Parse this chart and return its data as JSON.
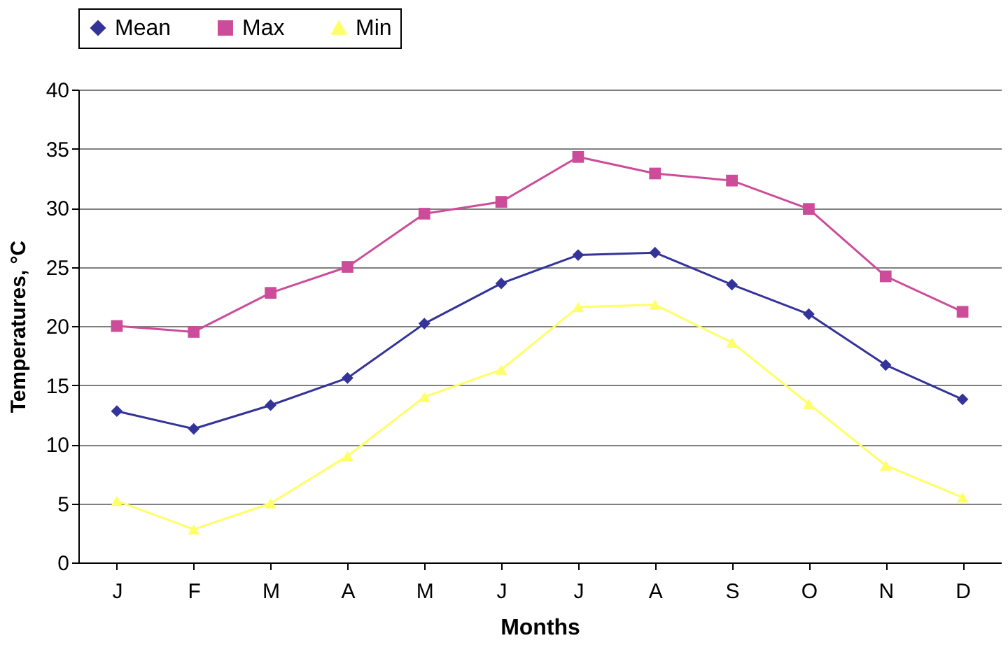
{
  "chart_data": {
    "type": "line",
    "xlabel": "Months",
    "ylabel": "Temperatures, °C",
    "categories": [
      "J",
      "F",
      "M",
      "A",
      "M",
      "J",
      "J",
      "A",
      "S",
      "O",
      "N",
      "D"
    ],
    "series": [
      {
        "name": "Mean",
        "color": "#333399",
        "marker": "diamond",
        "values": [
          12.8,
          11.3,
          13.3,
          15.6,
          20.2,
          23.6,
          26.0,
          26.2,
          23.5,
          21.0,
          16.7,
          13.8
        ]
      },
      {
        "name": "Max",
        "color": "#cc4c99",
        "marker": "square",
        "values": [
          20.0,
          19.5,
          22.8,
          25.0,
          29.5,
          30.5,
          34.3,
          32.9,
          32.3,
          29.9,
          24.2,
          21.2
        ]
      },
      {
        "name": "Min",
        "color": "#ffff66",
        "marker": "triangle",
        "values": [
          5.2,
          2.8,
          5.0,
          9.0,
          14.0,
          16.3,
          21.6,
          21.8,
          18.6,
          13.4,
          8.2,
          5.5
        ]
      }
    ],
    "ylim": [
      0,
      40
    ],
    "yticks": [
      0,
      5,
      10,
      15,
      20,
      25,
      30,
      35,
      40
    ],
    "grid": "y",
    "legend": "top",
    "line_style": "solid"
  }
}
